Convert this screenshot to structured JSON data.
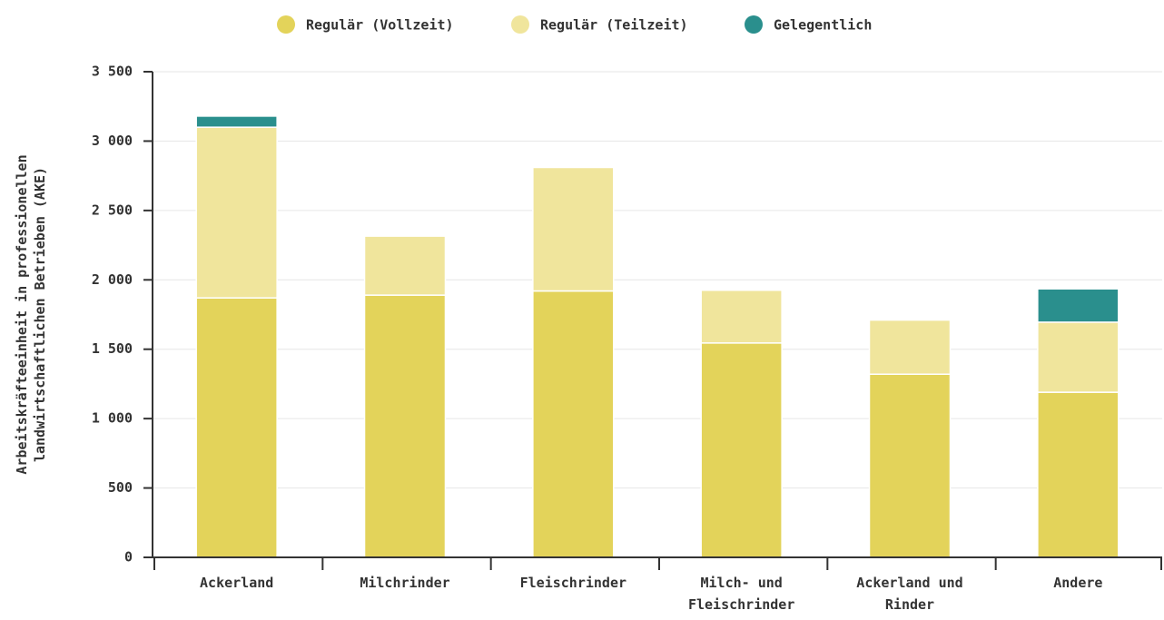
{
  "chart_data": {
    "type": "stacked_bar",
    "y_label": [
      "Arbeitskräfteeinheit in professionellen",
      "landwirtschaftlichen Betrieben (AKE)"
    ],
    "categories": [
      "Ackerland",
      "Milchrinder",
      "Fleischrinder",
      "Milch- und Fleischrinder",
      "Ackerland und Rinder",
      "Andere"
    ],
    "series": [
      {
        "name": "Regulär (Vollzeit)",
        "color": "#e3d35a",
        "values": [
          1870,
          1890,
          1920,
          1545,
          1320,
          1190
        ]
      },
      {
        "name": "Regulär (Teilzeit)",
        "color": "#f0e59c",
        "values": [
          1230,
          425,
          890,
          380,
          390,
          505
        ]
      },
      {
        "name": "Gelegentlich",
        "color": "#2a8f8d",
        "values": [
          80,
          0,
          0,
          0,
          0,
          240
        ]
      }
    ],
    "ylim": [
      0,
      3500
    ],
    "yticks": [
      0,
      500,
      {
        "value": 1000,
        "label": "1 000"
      },
      {
        "value": 1500,
        "label": "1 500"
      },
      {
        "value": 2000,
        "label": "2 000"
      },
      {
        "value": 2500,
        "label": "2 500"
      },
      {
        "value": 3000,
        "label": "3 000"
      },
      {
        "value": 3500,
        "label": "3 500"
      }
    ],
    "grid": true,
    "legend": "top"
  }
}
